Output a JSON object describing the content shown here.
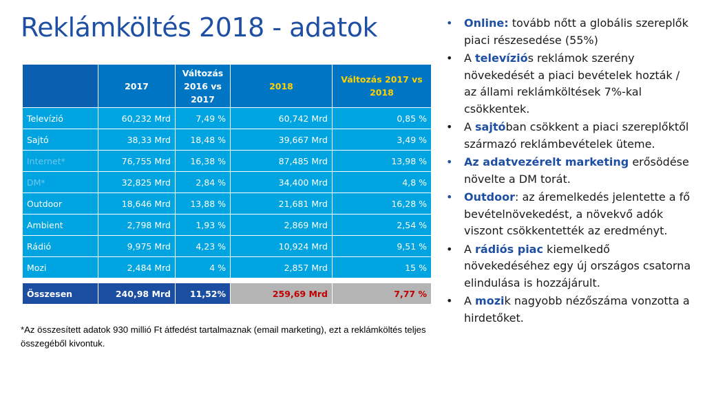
{
  "title": "Reklámköltés 2018 - adatok",
  "table": {
    "headers": [
      "",
      "2017",
      "Változás 2016 vs 2017",
      "2018",
      "Változás 2017 vs 2018"
    ],
    "rows": [
      {
        "label": "Televízió",
        "v2017": "60,232 Mrd",
        "chg1617": "7,49 %",
        "v2018": "60,742 Mrd",
        "chg1718": "0,85 %",
        "faded": false
      },
      {
        "label": "Sajtó",
        "v2017": "38,33 Mrd",
        "chg1617": "18,48 %",
        "v2018": "39,667 Mrd",
        "chg1718": "3,49 %",
        "faded": false
      },
      {
        "label": "Internet*",
        "v2017": "76,755 Mrd",
        "chg1617": "16,38 %",
        "v2018": "87,485 Mrd",
        "chg1718": "13,98 %",
        "faded": true
      },
      {
        "label": "DM*",
        "v2017": "32,825 Mrd",
        "chg1617": "2,84 %",
        "v2018": "34,400 Mrd",
        "chg1718": "4,8 %",
        "faded": true
      },
      {
        "label": "Outdoor",
        "v2017": "18,646 Mrd",
        "chg1617": "13,88 %",
        "v2018": "21,681 Mrd",
        "chg1718": "16,28 %",
        "faded": false
      },
      {
        "label": "Ambient",
        "v2017": "2,798 Mrd",
        "chg1617": "1,93 %",
        "v2018": "2,869 Mrd",
        "chg1718": "2,54 %",
        "faded": false
      },
      {
        "label": "Rádió",
        "v2017": "9,975 Mrd",
        "chg1617": "4,23 %",
        "v2018": "10,924 Mrd",
        "chg1718": "9,51 %",
        "faded": false
      },
      {
        "label": "Mozi",
        "v2017": "2,484 Mrd",
        "chg1617": "4 %",
        "v2018": "2,857 Mrd",
        "chg1718": "15 %",
        "faded": false
      }
    ],
    "total": {
      "label": "Összesen",
      "v2017": "240,98 Mrd",
      "chg1617": "11,52%",
      "v2018": "259,69 Mrd",
      "chg1718": "7,77 %"
    }
  },
  "footnote": "*Az összesített adatok 930 millió Ft átfedést tartalmaznak (email marketing), ezt a reklámköltés teljes összegéből kivontuk.",
  "bullets": [
    {
      "segments": [
        {
          "text": "Online:",
          "bold": true
        },
        {
          "text": " tovább nőtt a globális szereplők piaci részesedése (55%)",
          "bold": false
        }
      ],
      "dot_color": "blue"
    },
    {
      "segments": [
        {
          "text": "A ",
          "bold": false
        },
        {
          "text": "televízió",
          "bold": true
        },
        {
          "text": "s reklámok szerény növekedését a piaci bevételek hozták / az állami reklámköltések 7%-kal csökkentek.",
          "bold": false
        }
      ],
      "dot_color": "black"
    },
    {
      "segments": [
        {
          "text": "A ",
          "bold": false
        },
        {
          "text": "sajtó",
          "bold": true
        },
        {
          "text": "ban csökkent a piaci szereplőktől származó reklámbevételek üteme.",
          "bold": false
        }
      ],
      "dot_color": "black"
    },
    {
      "segments": [
        {
          "text": "Az adatvezérelt marketing",
          "bold": true
        },
        {
          "text": " erősödése növelte a DM torát.",
          "bold": false
        }
      ],
      "dot_color": "blue"
    },
    {
      "segments": [
        {
          "text": "Outdoor",
          "bold": true
        },
        {
          "text": ": az áremelkedés jelentette a fő bevételnövekedést, a növekvő adók viszont csökkentették az eredményt.",
          "bold": false
        }
      ],
      "dot_color": "blue"
    },
    {
      "segments": [
        {
          "text": " A ",
          "bold": false
        },
        {
          "text": "rádiós piac",
          "bold": true
        },
        {
          "text": " kiemelkedő növekedéséhez egy új országos csatorna elindulása is hozzájárult.",
          "bold": false
        }
      ],
      "dot_color": "black"
    },
    {
      "segments": [
        {
          "text": "A ",
          "bold": false
        },
        {
          "text": "mozi",
          "bold": true
        },
        {
          "text": "k nagyobb nézőszáma vonzotta a hirdetőket.",
          "bold": false
        }
      ],
      "dot_color": "black"
    }
  ],
  "bullet_glyph": "•"
}
